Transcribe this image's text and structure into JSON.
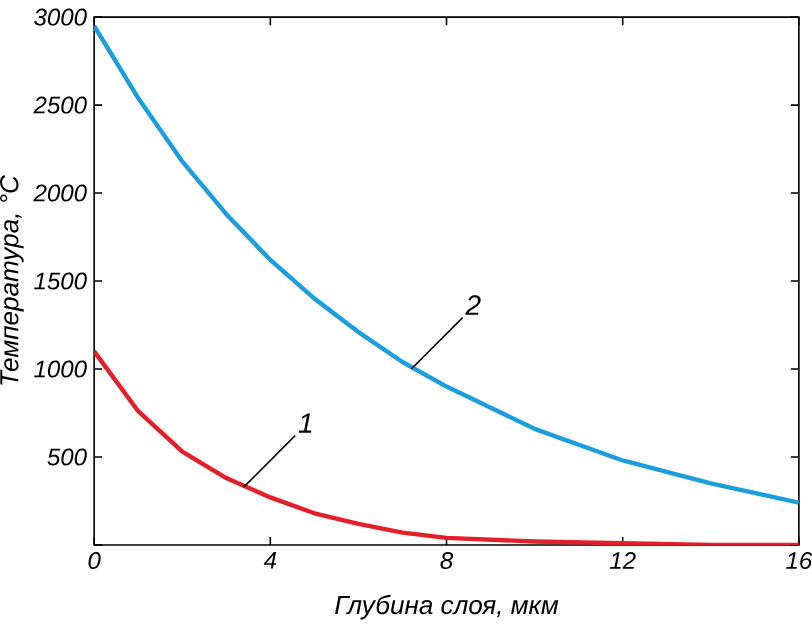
{
  "chart_data": {
    "type": "line",
    "xlabel": "Глубина слоя, мкм",
    "ylabel": "Температура, °C",
    "x": [
      0,
      1,
      2,
      3,
      4,
      5,
      6,
      7,
      8,
      10,
      12,
      14,
      16
    ],
    "series": [
      {
        "color": "#e3202a",
        "values": [
          1100,
          760,
          530,
          380,
          270,
          180,
          120,
          70,
          40,
          20,
          10,
          0,
          0
        ]
      },
      {
        "color": "#1a9fdc",
        "values": [
          2950,
          2540,
          2180,
          1880,
          1620,
          1400,
          1210,
          1040,
          900,
          660,
          480,
          350,
          240
        ]
      }
    ],
    "annotations": [
      {
        "text": "1",
        "x": 3.4,
        "y": 330
      },
      {
        "text": "2",
        "x": 7.2,
        "y": 1000
      }
    ],
    "xlim": [
      0,
      16
    ],
    "ylim": [
      0,
      3000
    ],
    "xticks": [
      0,
      4,
      8,
      12,
      16
    ],
    "yticks": [
      {
        "value": 0,
        "label": null
      },
      500,
      1000,
      1500,
      2000,
      2500,
      3000
    ],
    "grid": false,
    "marker": "none",
    "line_style": "solid"
  }
}
